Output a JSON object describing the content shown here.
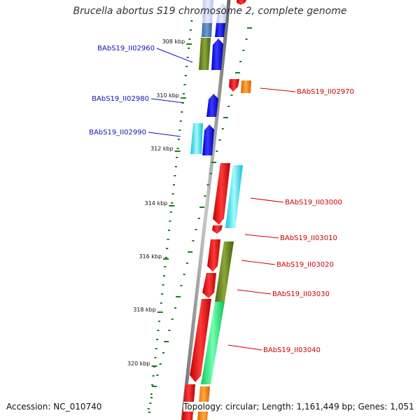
{
  "title": "Brucella abortus S19 chromosome 2, complete genome",
  "accession": "Accession: NC_010740",
  "topology": "Topology: circular; Length: 1,161,449 bp; Genes: 1,051",
  "scale_labels": [
    {
      "label": "308 kbp",
      "kb": 308
    },
    {
      "label": "310 kbp",
      "kb": 310
    },
    {
      "label": "312 kbp",
      "kb": 312
    },
    {
      "label": "314 kbp",
      "kb": 314
    },
    {
      "label": "316 kbp",
      "kb": 316
    },
    {
      "label": "318 kbp",
      "kb": 318
    },
    {
      "label": "320 kbp",
      "kb": 320
    }
  ],
  "colors": {
    "backbone": "#8a8a8a",
    "scale_ticks": "#1e7a1e",
    "forward_label": "#1010c0",
    "reverse_label": "#cc0000"
  },
  "gene_labels": [
    {
      "label": "BAbS19_II02960",
      "strand": "forward"
    },
    {
      "label": "BAbS19_II02970",
      "strand": "reverse"
    },
    {
      "label": "BAbS19_II02980",
      "strand": "forward"
    },
    {
      "label": "BAbS19_II02990",
      "strand": "forward"
    },
    {
      "label": "BAbS19_II03000",
      "strand": "reverse"
    },
    {
      "label": "BAbS19_II03010",
      "strand": "reverse"
    },
    {
      "label": "BAbS19_II03020",
      "strand": "reverse"
    },
    {
      "label": "BAbS19_II03030",
      "strand": "reverse"
    },
    {
      "label": "BAbS19_II03040",
      "strand": "reverse"
    }
  ]
}
